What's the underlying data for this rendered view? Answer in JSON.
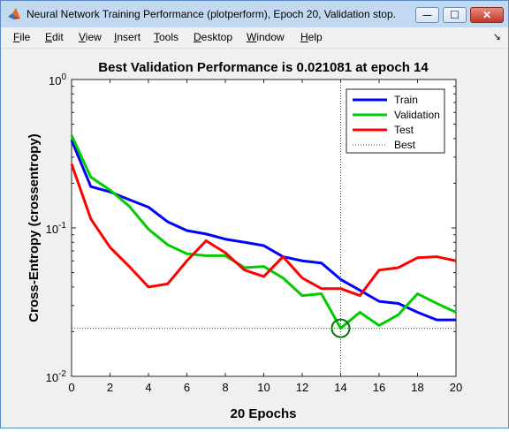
{
  "window": {
    "title": "Neural Network Training Performance (plotperform), Epoch 20, Validation stop.",
    "minimize_glyph": "—",
    "maximize_glyph": "☐",
    "close_glyph": "✕"
  },
  "menu": {
    "items": [
      {
        "accel": "F",
        "rest": "ile"
      },
      {
        "accel": "E",
        "rest": "dit"
      },
      {
        "accel": "V",
        "rest": "iew"
      },
      {
        "accel": "I",
        "rest": "nsert"
      },
      {
        "accel": "T",
        "rest": "ools"
      },
      {
        "accel": "D",
        "rest": "esktop"
      },
      {
        "accel": "W",
        "rest": "indow"
      },
      {
        "accel": "H",
        "rest": "elp"
      }
    ],
    "dock_glyph": "↘"
  },
  "colors": {
    "train": "#0000ff",
    "validation": "#00cc00",
    "test": "#ff0000",
    "best": "#007a00"
  },
  "chart_data": {
    "type": "line",
    "title": "Best Validation Performance is 0.021081 at epoch 14",
    "xlabel": "20 Epochs",
    "ylabel": "Cross-Entropy  (crossentropy)",
    "y_scale": "log",
    "xlim": [
      0,
      20
    ],
    "ylim": [
      0.01,
      1
    ],
    "x_ticks": [
      "0",
      "2",
      "4",
      "6",
      "8",
      "10",
      "12",
      "14",
      "16",
      "18",
      "20"
    ],
    "y_ticks": [
      {
        "value": 1,
        "base": "10",
        "exp": "0"
      },
      {
        "value": 0.1,
        "base": "10",
        "exp": "-1"
      },
      {
        "value": 0.01,
        "base": "10",
        "exp": "-2"
      }
    ],
    "legend_position": "top-right",
    "x": [
      0,
      1,
      2,
      3,
      4,
      5,
      6,
      7,
      8,
      9,
      10,
      11,
      12,
      13,
      14,
      15,
      16,
      17,
      18,
      19,
      20
    ],
    "series": [
      {
        "name": "Train",
        "color": "#0000ff",
        "values": [
          0.39,
          0.19,
          0.175,
          0.155,
          0.138,
          0.11,
          0.096,
          0.091,
          0.084,
          0.08,
          0.076,
          0.064,
          0.06,
          0.058,
          0.045,
          0.038,
          0.032,
          0.031,
          0.027,
          0.024,
          0.024
        ]
      },
      {
        "name": "Validation",
        "color": "#00cc00",
        "values": [
          0.42,
          0.22,
          0.18,
          0.14,
          0.098,
          0.077,
          0.067,
          0.065,
          0.065,
          0.054,
          0.055,
          0.046,
          0.035,
          0.036,
          0.021081,
          0.027,
          0.022,
          0.026,
          0.036,
          0.031,
          0.027
        ]
      },
      {
        "name": "Test",
        "color": "#ff0000",
        "values": [
          0.27,
          0.115,
          0.074,
          0.055,
          0.04,
          0.042,
          0.06,
          0.082,
          0.068,
          0.052,
          0.047,
          0.064,
          0.046,
          0.039,
          0.039,
          0.035,
          0.052,
          0.054,
          0.063,
          0.064,
          0.06
        ]
      }
    ],
    "best": {
      "name": "Best",
      "epoch": 14,
      "value": 0.021081
    }
  }
}
